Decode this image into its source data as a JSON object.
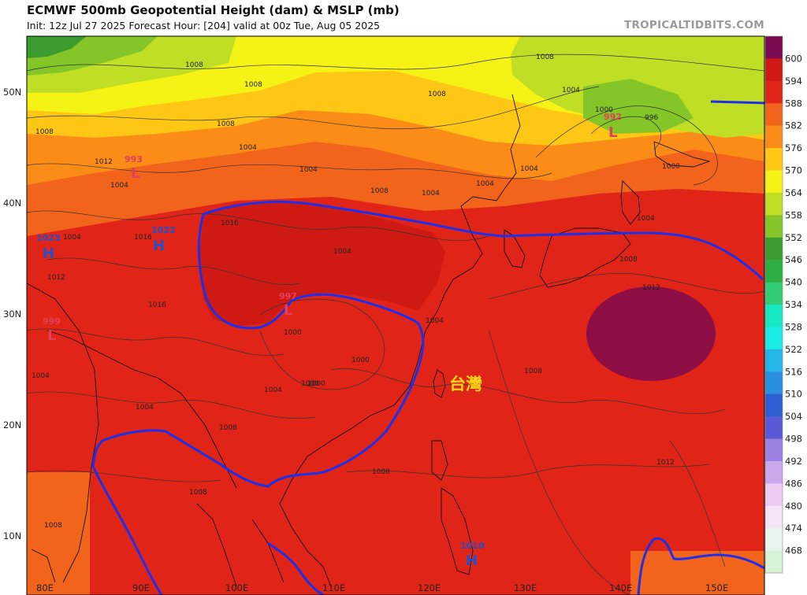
{
  "header": {
    "title": "ECMWF 500mb Geopotential Height (dam) & MSLP (mb)",
    "subtitle": "Init: 12z Jul 27 2025   Forecast Hour: [204]   valid at 00z Tue, Aug 05 2025",
    "brand": "TROPICALTIDBITS.COM"
  },
  "axes": {
    "lat_labels": [
      "50N",
      "40N",
      "30N",
      "20N",
      "10N"
    ],
    "lon_labels": [
      "80E",
      "90E",
      "100E",
      "110E",
      "120E",
      "130E",
      "140E",
      "150E"
    ]
  },
  "colorbar": {
    "labels": [
      "600",
      "594",
      "588",
      "582",
      "576",
      "570",
      "564",
      "558",
      "552",
      "546",
      "540",
      "534",
      "528",
      "522",
      "516",
      "510",
      "504",
      "498",
      "492",
      "486",
      "480",
      "474",
      "468"
    ],
    "colors": [
      "#7a0a4f",
      "#cf1a14",
      "#e02417",
      "#f2641b",
      "#fb8c17",
      "#fec615",
      "#f5f215",
      "#bfde25",
      "#84c627",
      "#3c9b2e",
      "#2fae43",
      "#33cc77",
      "#16e8c2",
      "#19ece6",
      "#23b6e6",
      "#2a8fe0",
      "#2d5fd3",
      "#5a5ad6",
      "#9c83e3",
      "#c9a9ec",
      "#eccbf3",
      "#f5e3f6",
      "#e8f5ef",
      "#d6f3d5"
    ]
  },
  "pressure_centers": [
    {
      "type": "L",
      "value": "993",
      "color": "#e0405a"
    },
    {
      "type": "H",
      "value": "1023",
      "color": "#2050d0"
    },
    {
      "type": "H",
      "value": "1022",
      "color": "#2050d0"
    },
    {
      "type": "L",
      "value": "997",
      "color": "#e0405a"
    },
    {
      "type": "L",
      "value": "999",
      "color": "#e0405a"
    },
    {
      "type": "L",
      "value": "992",
      "color": "#e0405a"
    },
    {
      "type": "H",
      "value": "1010",
      "color": "#2050d0"
    }
  ],
  "isobar_labels": [
    "1008",
    "1008",
    "1008",
    "1004",
    "1012",
    "1004",
    "1008",
    "1004",
    "1004",
    "1008",
    "1000",
    "1000",
    "1004",
    "1008",
    "1004",
    "1016",
    "1016",
    "1004",
    "1012",
    "1016",
    "1004",
    "1004",
    "1000",
    "1000",
    "1000",
    "1004",
    "1008",
    "1008",
    "1008",
    "1012",
    "1012",
    "1008",
    "1004",
    "1008",
    "1008",
    "1004",
    "996",
    "1000",
    "1004",
    "1004",
    "1008"
  ],
  "annotations": {
    "place_label": "台灣",
    "contour_588_color": "#1f2fe8",
    "arrow_color": "#1f2fe8"
  }
}
